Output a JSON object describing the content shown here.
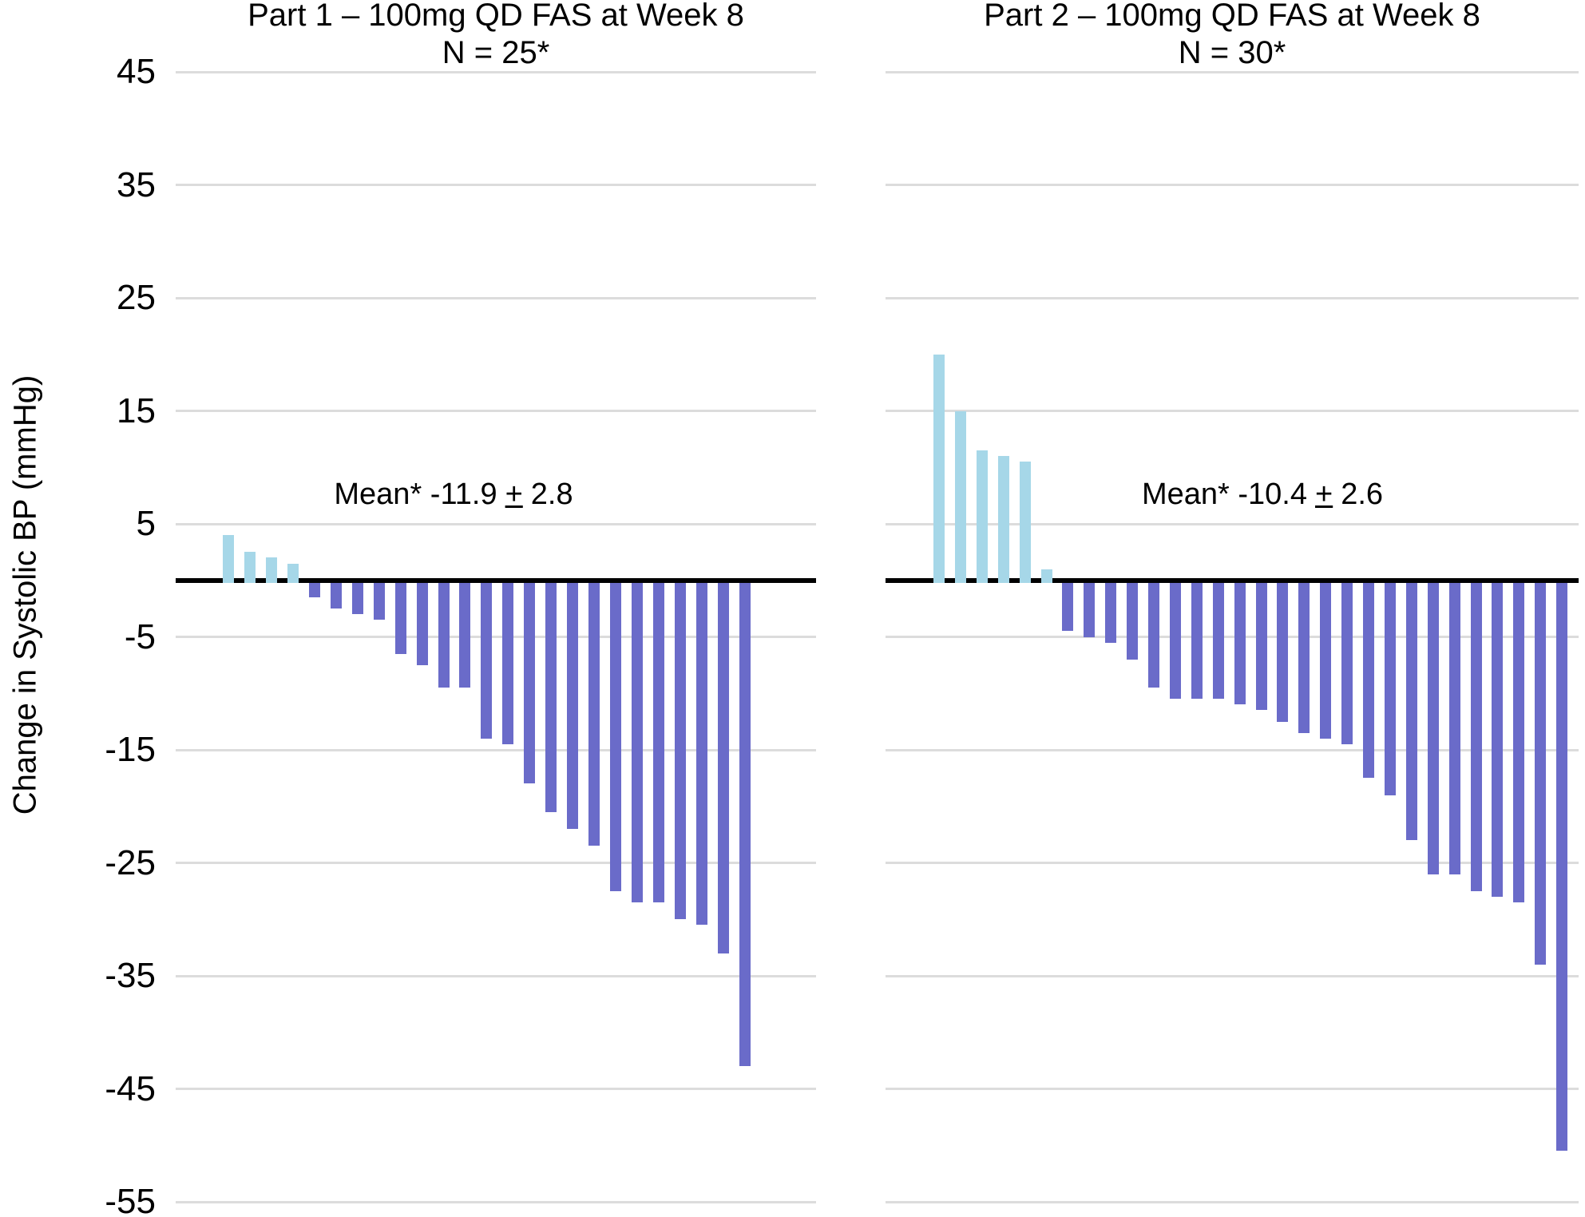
{
  "chart_data": {
    "type": "bar",
    "subtype": "patient-level waterfall, two panels",
    "ylabel": "Change in Systolic BP (mmHg)",
    "ylim": [
      -55,
      45
    ],
    "yticks": [
      45,
      35,
      25,
      15,
      5,
      -5,
      -15,
      -25,
      -35,
      -45,
      -55
    ],
    "grid": "horizontal",
    "legend": "none",
    "colors": {
      "positive": "#A6D7E8",
      "negative": "#6A6BC9",
      "gridline": "#DCDCDC",
      "zero_line": "#000000",
      "text": "#000000"
    },
    "panels": [
      {
        "title": "Part 1 – 100mg QD FAS at Week 8",
        "n_label": "N = 25*",
        "mean_label": "Mean* -11.9",
        "mean_pm": "+",
        "mean_sd": "2.8",
        "values": [
          4,
          2.5,
          2,
          1.5,
          -1.5,
          -2.5,
          -3,
          -3.5,
          -6.5,
          -7.5,
          -9.5,
          -9.5,
          -14,
          -14.5,
          -18,
          -20.5,
          -22,
          -23.5,
          -27.5,
          -28.5,
          -28.5,
          -30,
          -30.5,
          -33,
          -43
        ]
      },
      {
        "title": "Part 2 – 100mg QD FAS at Week 8",
        "n_label": "N = 30*",
        "mean_label": "Mean* -10.4",
        "mean_pm": "+",
        "mean_sd": "2.6",
        "values": [
          20,
          15,
          11.5,
          11,
          10.5,
          1,
          -4.5,
          -5,
          -5.5,
          -7,
          -9.5,
          -10.5,
          -10.5,
          -10.5,
          -11,
          -11.5,
          -12.5,
          -13.5,
          -14,
          -14.5,
          -17.5,
          -19,
          -23,
          -26,
          -26,
          -27.5,
          -28,
          -28.5,
          -34,
          -50.5
        ]
      }
    ]
  }
}
